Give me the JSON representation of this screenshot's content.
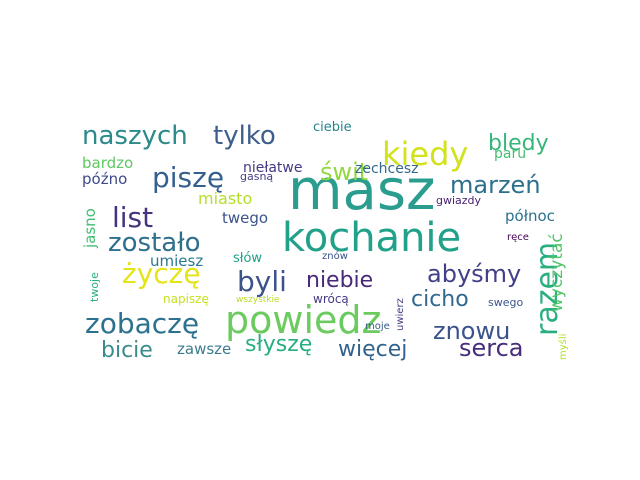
{
  "words": [
    {
      "text": "masz",
      "color": "#2a9d8f"
    },
    {
      "text": "kochanie",
      "color": "#21a08a"
    },
    {
      "text": "powiedz",
      "color": "#6ccb5f"
    },
    {
      "text": "kiedy",
      "color": "#d2e21b"
    },
    {
      "text": "naszych",
      "color": "#2c8a8b"
    },
    {
      "text": "tylko",
      "color": "#3e5f8d"
    },
    {
      "text": "bledy",
      "color": "#35b779"
    },
    {
      "text": "paru",
      "color": "#44bf70"
    },
    {
      "text": "piszę",
      "color": "#355f8d"
    },
    {
      "text": "świt",
      "color": "#94d840"
    },
    {
      "text": "zechcesz",
      "color": "#31688e"
    },
    {
      "text": "marzeń",
      "color": "#2d708e"
    },
    {
      "text": "list",
      "color": "#46337e"
    },
    {
      "text": "zostało",
      "color": "#2e6f8e"
    },
    {
      "text": "życzę",
      "color": "#e5e419"
    },
    {
      "text": "byli",
      "color": "#3b528b"
    },
    {
      "text": "niebie",
      "color": "#482878"
    },
    {
      "text": "abyśmy",
      "color": "#424086"
    },
    {
      "text": "razem",
      "color": "#29af7f"
    },
    {
      "text": "cicho",
      "color": "#31688e"
    },
    {
      "text": "zobaczę",
      "color": "#2c728e"
    },
    {
      "text": "znowu",
      "color": "#3b528b"
    },
    {
      "text": "wyczytać",
      "color": "#52c569"
    },
    {
      "text": "bicie",
      "color": "#3a8c8c"
    },
    {
      "text": "zawsze",
      "color": "#3e7b8e"
    },
    {
      "text": "słyszę",
      "color": "#29af7f"
    },
    {
      "text": "więcej",
      "color": "#33638d"
    },
    {
      "text": "serca",
      "color": "#472d7b"
    },
    {
      "text": "bardzo",
      "color": "#5ec962"
    },
    {
      "text": "późno",
      "color": "#3e4a89"
    },
    {
      "text": "niełatwe",
      "color": "#443983"
    },
    {
      "text": "gasną",
      "color": "#433e85"
    },
    {
      "text": "miasto",
      "color": "#b5de2b"
    },
    {
      "text": "twego",
      "color": "#3b528b"
    },
    {
      "text": "gwiazdy",
      "color": "#481f70"
    },
    {
      "text": "północ",
      "color": "#2c728e"
    },
    {
      "text": "jasno",
      "color": "#42be71"
    },
    {
      "text": "umiesz",
      "color": "#2a788e"
    },
    {
      "text": "słów",
      "color": "#1f9e89"
    },
    {
      "text": "ręce",
      "color": "#440154"
    },
    {
      "text": "twoje",
      "color": "#29af7f"
    },
    {
      "text": "znów",
      "color": "#3b528b"
    },
    {
      "text": "napiszę",
      "color": "#cae11f"
    },
    {
      "text": "wszystkie",
      "color": "#b8de29"
    },
    {
      "text": "wrócą",
      "color": "#443a83"
    },
    {
      "text": "uwierz",
      "color": "#433e85"
    },
    {
      "text": "swego",
      "color": "#39558c"
    },
    {
      "text": "moje",
      "color": "#375b8d"
    },
    {
      "text": "myśli",
      "color": "#b5de2b"
    },
    {
      "text": "ciebie",
      "color": "#25848e"
    }
  ]
}
